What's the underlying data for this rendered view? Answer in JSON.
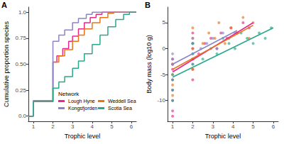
{
  "chart_data": [
    {
      "type": "line",
      "line_style": "step",
      "panel_label": "A",
      "x_label": "Trophic level",
      "y_label": "Cumulative proportion species",
      "xlim": [
        0.75,
        6.25
      ],
      "xticks": [
        1,
        2,
        3,
        4,
        5,
        6
      ],
      "ylim": [
        -0.05,
        1.05
      ],
      "yticks": [
        {
          "value": 0,
          "label": "0.0"
        },
        0.25,
        {
          "value": 0.5,
          "label": "0.50"
        },
        0.75,
        {
          "value": 1,
          "label": "1.0"
        }
      ],
      "grid": false,
      "legend": "lower right",
      "legend_title": "Network",
      "series": [
        {
          "name": "Lough Hyne",
          "color": "#e7298a",
          "x": [
            0.75,
            1,
            2,
            2.2,
            2.5,
            2.8,
            3,
            3.3,
            3.6,
            3.9,
            4.2,
            4.5,
            6.25
          ],
          "values": [
            0,
            0.14,
            0.52,
            0.58,
            0.65,
            0.72,
            0.77,
            0.84,
            0.9,
            0.95,
            0.98,
            1,
            1
          ]
        },
        {
          "name": "Weddell Sea",
          "color": "#e6751a",
          "x": [
            0.75,
            1,
            2,
            2.3,
            2.6,
            3,
            3.3,
            3.6,
            4,
            4.4,
            4.8,
            5.1,
            6.25
          ],
          "values": [
            0,
            0.14,
            0.52,
            0.58,
            0.64,
            0.72,
            0.78,
            0.84,
            0.9,
            0.95,
            0.99,
            1,
            1
          ]
        },
        {
          "name": "Kongsfjorden",
          "color": "#8b84c8",
          "x": [
            0.75,
            1,
            2,
            2.3,
            2.6,
            3,
            3.3,
            3.7,
            4,
            6.25
          ],
          "values": [
            0,
            0.15,
            0.72,
            0.78,
            0.83,
            0.9,
            0.94,
            0.98,
            1,
            1
          ]
        },
        {
          "name": "Scotia Sea",
          "color": "#2aa88a",
          "x": [
            0.75,
            1,
            2,
            2.3,
            2.6,
            3,
            3.3,
            3.6,
            4,
            4.4,
            4.8,
            5.2,
            5.6,
            5.9,
            6.25
          ],
          "values": [
            0,
            0.14,
            0.27,
            0.33,
            0.38,
            0.46,
            0.53,
            0.6,
            0.69,
            0.78,
            0.86,
            0.93,
            0.98,
            1,
            1
          ]
        }
      ]
    },
    {
      "type": "scatter",
      "panel_label": "B",
      "x_label": "Trophic level",
      "y_label": "Body mass (log10 g)",
      "xlim": [
        0.75,
        6.25
      ],
      "xticks": [
        1,
        2,
        3,
        4,
        5,
        6
      ],
      "ylim": [
        -14,
        8
      ],
      "yticks": [
        -10,
        -5,
        0,
        5
      ],
      "grid": false,
      "series": [
        {
          "name": "Lough Hyne",
          "color": "#e7298a",
          "x": [
            1,
            1,
            1,
            1,
            1,
            1,
            1,
            1,
            2,
            2,
            2,
            2,
            2,
            2,
            2.3,
            2.6,
            2.9,
            3.2,
            3.4,
            3.7,
            3.9,
            4.2,
            4.5,
            4.8
          ],
          "values": [
            -13,
            -12,
            -10,
            -8,
            -6,
            -4,
            -3,
            -2,
            -6,
            -4,
            -2,
            0,
            1,
            3,
            -1,
            1,
            2,
            0,
            3,
            2,
            4,
            3,
            5,
            4
          ],
          "fit": {
            "x": [
              1,
              5
            ],
            "values": [
              -4.5,
              5
            ]
          }
        },
        {
          "name": "Weddell Sea",
          "color": "#e6751a",
          "x": [
            1,
            1,
            1,
            1,
            2,
            2,
            2,
            2,
            2,
            2.5,
            2.8,
            3.1,
            3.3,
            3.6,
            3.9,
            4.2,
            4.5,
            4.8,
            5
          ],
          "values": [
            -9,
            -7,
            -5,
            -3,
            -4,
            -2,
            0,
            2,
            4,
            1,
            3,
            2,
            5,
            1,
            4,
            3,
            6,
            2,
            5
          ],
          "fit": {
            "x": [
              1,
              5
            ],
            "values": [
              -4,
              4.5
            ]
          }
        },
        {
          "name": "Kongsfjorden",
          "color": "#8b84c8",
          "x": [
            1,
            1,
            1,
            2,
            2,
            2,
            2,
            2.4,
            2.7,
            3,
            3.2,
            3.5,
            3.8,
            4.1
          ],
          "values": [
            -3,
            -2,
            -1,
            -3,
            -1,
            1,
            2,
            0,
            1,
            2,
            0,
            3,
            2,
            3
          ],
          "fit": {
            "x": [
              1,
              4.2
            ],
            "values": [
              -3,
              3.5
            ]
          }
        },
        {
          "name": "Scotia Sea",
          "color": "#2aa88a",
          "x": [
            1,
            1,
            1,
            1,
            2,
            2,
            2,
            2.5,
            2.9,
            3.2,
            3.5,
            3.8,
            4.1,
            4.4,
            4.7,
            5,
            5.3,
            5.6,
            5.9
          ],
          "values": [
            -10,
            -8,
            -6,
            -5,
            -3,
            -1,
            1,
            -2,
            0,
            -1,
            2,
            1,
            0,
            3,
            2,
            1,
            3,
            2,
            4
          ],
          "fit": {
            "x": [
              1,
              6
            ],
            "values": [
              -5.5,
              4
            ]
          }
        }
      ]
    }
  ]
}
